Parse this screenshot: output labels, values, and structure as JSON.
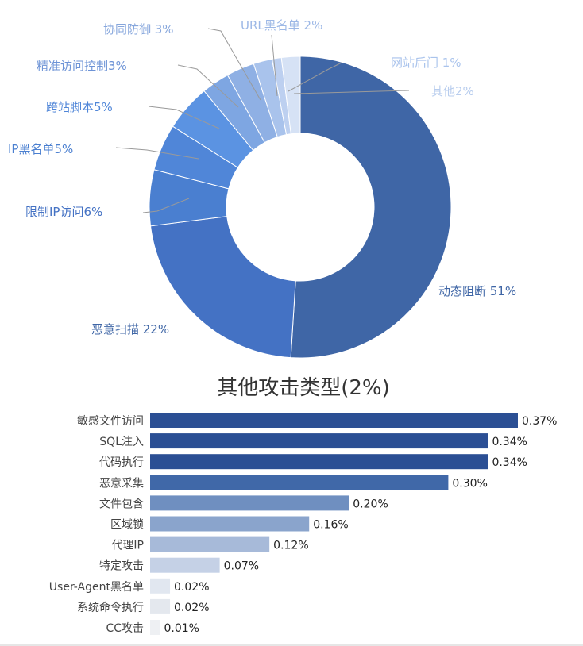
{
  "chart_data": [
    {
      "type": "pie",
      "style": "donut",
      "slices": [
        {
          "label": "动态阻断 51%",
          "value": 51,
          "color": "#3F66A6"
        },
        {
          "label": "恶意扫描 22%",
          "value": 22,
          "color": "#4472C4"
        },
        {
          "label": "限制IP访问6%",
          "value": 6,
          "color": "#4A7FD0"
        },
        {
          "label": "IP黑名单5%",
          "value": 5,
          "color": "#5086D8"
        },
        {
          "label": "跨站脚本5%",
          "value": 5,
          "color": "#5B93E2"
        },
        {
          "label": "精准访问控制3%",
          "value": 3,
          "color": "#7EA6E2"
        },
        {
          "label": "协同防御 3%",
          "value": 3,
          "color": "#8FB0E4"
        },
        {
          "label": "URL黑名单 2%",
          "value": 2,
          "color": "#A9C3EC"
        },
        {
          "label": "网站后门 1%",
          "value": 1,
          "color": "#BDD0F0"
        },
        {
          "label": "其他2%",
          "value": 2,
          "color": "#D6E2F5"
        }
      ]
    },
    {
      "type": "bar",
      "orientation": "horizontal",
      "title": "其他攻击类型(2%)",
      "categories": [
        "敏感文件访问",
        "SQL注入",
        "代码执行",
        "恶意采集",
        "文件包含",
        "区域锁",
        "代理IP",
        "特定攻击",
        "User-Agent黑名单",
        "系统命令执行",
        "CC攻击"
      ],
      "values": [
        0.37,
        0.34,
        0.34,
        0.3,
        0.2,
        0.16,
        0.12,
        0.07,
        0.02,
        0.02,
        0.01
      ],
      "value_labels": [
        "0.37%",
        "0.34%",
        "0.34%",
        "0.30%",
        "0.20%",
        "0.16%",
        "0.12%",
        "0.07%",
        "0.02%",
        "0.02%",
        "0.01%"
      ],
      "colors": [
        "#2B4F94",
        "#2B4F94",
        "#2B4F94",
        "#4068A8",
        "#6F8FC0",
        "#8AA4CC",
        "#A7BAD9",
        "#C5D1E6",
        "#E1E7F0",
        "#E4E8EE",
        "#EEF0F3"
      ]
    }
  ]
}
